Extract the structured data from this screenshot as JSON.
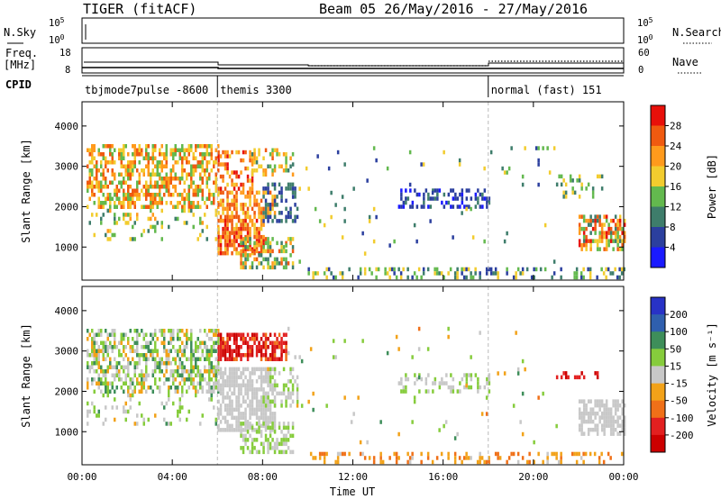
{
  "header": {
    "title": "TIGER (fitACF)",
    "subtitle": "Beam 05 26/May/2016 - 27/May/2016"
  },
  "strip_labels": {
    "nsky": "N.Sky",
    "nsearch": "N.Search",
    "freq_line1": "Freq.",
    "freq_line2": "[MHz]",
    "nave": "Nave",
    "cpid": "CPID"
  },
  "strip_ticks": {
    "nsky_left": [
      "10^5",
      "10^0"
    ],
    "nsearch_right": [
      "10^5",
      "10^0"
    ],
    "freq_left": [
      "18",
      "8"
    ],
    "nave_right": [
      "60",
      "0"
    ]
  },
  "cpid_segments": [
    {
      "label": "tbjmode7pulse -8600",
      "start_h": 0,
      "end_h": 6
    },
    {
      "label": "themis 3300",
      "start_h": 6,
      "end_h": 18
    },
    {
      "label": "normal (fast) 151",
      "start_h": 18,
      "end_h": 24
    }
  ],
  "colors": {
    "power": [
      "#1a1aff",
      "#2b3f9e",
      "#3e7d6b",
      "#63b94e",
      "#f2cc2e",
      "#ff9a1c",
      "#f05a10",
      "#e8100a"
    ],
    "velocity": [
      "#2832c6",
      "#2f5fae",
      "#3e8e5a",
      "#86cc3c",
      "#c8c8c8",
      "#f2a219",
      "#f07018",
      "#e22020",
      "#cc0000"
    ]
  },
  "chart_data": [
    {
      "type": "heatmap",
      "title": "Power",
      "ylabel": "Slant Range [km]",
      "xlabel": "",
      "x_unit": "hours UT",
      "xlim": [
        0,
        24
      ],
      "ylim": [
        180,
        4600
      ],
      "y_ticks": [
        "1000",
        "2000",
        "3000",
        "4000"
      ],
      "colorbar_label": "Power [dB]",
      "colorbar_ticks": [
        "4",
        "8",
        "12",
        "16",
        "20",
        "24",
        "28"
      ],
      "colorbar_range": [
        0,
        32
      ],
      "regions": [
        {
          "x_range": [
            0.2,
            6.0
          ],
          "y_range": [
            1950,
            3550
          ],
          "value_range": [
            12,
            28
          ],
          "density": 0.55
        },
        {
          "x_range": [
            0.2,
            6.0
          ],
          "y_range": [
            1150,
            1950
          ],
          "value_range": [
            10,
            22
          ],
          "density": 0.15
        },
        {
          "x_range": [
            6.0,
            8.0
          ],
          "y_range": [
            850,
            1700
          ],
          "value_range": [
            18,
            30
          ],
          "density": 0.75
        },
        {
          "x_range": [
            6.0,
            8.5
          ],
          "y_range": [
            1700,
            2400
          ],
          "value_range": [
            16,
            28
          ],
          "density": 0.6
        },
        {
          "x_range": [
            6.0,
            7.5
          ],
          "y_range": [
            2400,
            3400
          ],
          "value_range": [
            18,
            30
          ],
          "density": 0.45
        },
        {
          "x_range": [
            7.5,
            9.3
          ],
          "y_range": [
            2800,
            3450
          ],
          "value_range": [
            10,
            26
          ],
          "density": 0.4
        },
        {
          "x_range": [
            7.0,
            9.3
          ],
          "y_range": [
            480,
            1250
          ],
          "value_range": [
            8,
            26
          ],
          "density": 0.5
        },
        {
          "x_range": [
            8.0,
            9.5
          ],
          "y_range": [
            1600,
            2600
          ],
          "value_range": [
            4,
            12
          ],
          "density": 0.4
        },
        {
          "x_range": [
            10.0,
            24.0
          ],
          "y_range": [
            240,
            500
          ],
          "value_range": [
            4,
            20
          ],
          "density": 0.28
        },
        {
          "x_range": [
            14.0,
            18.0
          ],
          "y_range": [
            1950,
            2450
          ],
          "value_range": [
            2,
            10
          ],
          "density": 0.35
        },
        {
          "x_range": [
            21.0,
            23.0
          ],
          "y_range": [
            2200,
            2800
          ],
          "value_range": [
            8,
            20
          ],
          "density": 0.25
        },
        {
          "x_range": [
            22.0,
            24.0
          ],
          "y_range": [
            950,
            1800
          ],
          "value_range": [
            10,
            30
          ],
          "density": 0.6
        },
        {
          "x_range": [
            9.0,
            21.0
          ],
          "y_range": [
            600,
            3600
          ],
          "value_range": [
            4,
            20
          ],
          "density": 0.02
        }
      ]
    },
    {
      "type": "heatmap",
      "title": "Velocity",
      "ylabel": "Slant Range [km]",
      "xlabel": "Time UT",
      "x_unit": "hours UT",
      "xlim": [
        0,
        24
      ],
      "ylim": [
        180,
        4600
      ],
      "x_ticks": [
        "00:00",
        "04:00",
        "08:00",
        "12:00",
        "16:00",
        "20:00",
        "00:00"
      ],
      "y_ticks": [
        "1000",
        "2000",
        "3000",
        "4000"
      ],
      "colorbar_label": "Velocity [m s⁻¹]",
      "colorbar_ticks": [
        "200",
        "100",
        "50",
        "15",
        "-15",
        "-50",
        "-100",
        "-200"
      ],
      "colorbar_range": [
        -250,
        250
      ],
      "regions": [
        {
          "x_range": [
            0.2,
            6.0
          ],
          "y_range": [
            1950,
            3550
          ],
          "value_range": [
            -60,
            120
          ],
          "density": 0.55
        },
        {
          "x_range": [
            0.2,
            6.0
          ],
          "y_range": [
            1150,
            1950
          ],
          "value_range": [
            -40,
            100
          ],
          "density": 0.15
        },
        {
          "x_range": [
            6.0,
            9.0
          ],
          "y_range": [
            2800,
            3450
          ],
          "value_range": [
            -240,
            -120
          ],
          "density": 0.65
        },
        {
          "x_range": [
            6.0,
            8.5
          ],
          "y_range": [
            1000,
            2600
          ],
          "value_range": [
            -12,
            12
          ],
          "density": 0.7
        },
        {
          "x_range": [
            7.0,
            9.3
          ],
          "y_range": [
            480,
            1250
          ],
          "value_range": [
            10,
            60
          ],
          "density": 0.5
        },
        {
          "x_range": [
            8.0,
            9.5
          ],
          "y_range": [
            1600,
            2600
          ],
          "value_range": [
            -30,
            80
          ],
          "density": 0.35
        },
        {
          "x_range": [
            10.0,
            24.0
          ],
          "y_range": [
            240,
            500
          ],
          "value_range": [
            -120,
            -20
          ],
          "density": 0.28
        },
        {
          "x_range": [
            14.0,
            18.0
          ],
          "y_range": [
            1950,
            2450
          ],
          "value_range": [
            -20,
            60
          ],
          "density": 0.35
        },
        {
          "x_range": [
            21.0,
            23.0
          ],
          "y_range": [
            2300,
            2500
          ],
          "value_range": [
            -240,
            -150
          ],
          "density": 0.35
        },
        {
          "x_range": [
            22.0,
            24.0
          ],
          "y_range": [
            950,
            1800
          ],
          "value_range": [
            -12,
            12
          ],
          "density": 0.6
        },
        {
          "x_range": [
            9.0,
            21.0
          ],
          "y_range": [
            600,
            3600
          ],
          "value_range": [
            -100,
            120
          ],
          "density": 0.02
        }
      ]
    }
  ]
}
